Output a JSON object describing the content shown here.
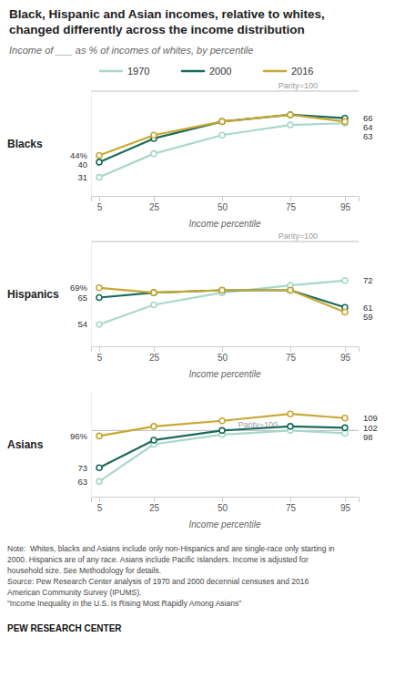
{
  "chart_data": [
    {
      "type": "line",
      "suptitle": "Black, Hispanic and Asian incomes, relative to whites,\nchanged differently across the income distribution",
      "subtitle": "Income of ___ as % of incomes of whites, by percentile",
      "title": "Blacks",
      "x": [
        5,
        25,
        50,
        75,
        95
      ],
      "xlim": [
        2,
        100
      ],
      "xticks": [
        5,
        25,
        50,
        75,
        95
      ],
      "x_label": "Income percentile",
      "ylim": [
        20,
        82
      ],
      "tick_labels": "x",
      "grid": false,
      "legend": "top",
      "data_labels": true,
      "marker": "circle",
      "annotations": [
        {
          "text": "Parity=100"
        }
      ],
      "series": [
        {
          "name": "1970",
          "color": "#a8d8c8",
          "values": [
            31,
            45,
            56,
            62,
            63
          ],
          "value_labels": [
            "31",
            null,
            null,
            null,
            "63"
          ]
        },
        {
          "name": "2000",
          "color": "#1a6b5a",
          "values": [
            40,
            54,
            64,
            68,
            66
          ],
          "value_labels": [
            "40",
            null,
            null,
            null,
            "66"
          ]
        },
        {
          "name": "2016",
          "color": "#c8a832",
          "values": [
            44,
            56,
            64,
            68,
            64
          ],
          "value_labels": [
            "44%",
            null,
            null,
            null,
            "64"
          ]
        }
      ]
    },
    {
      "type": "line",
      "title": "Hispanics",
      "x": [
        5,
        25,
        50,
        75,
        95
      ],
      "xlim": [
        2,
        100
      ],
      "xticks": [
        5,
        25,
        50,
        75,
        95
      ],
      "x_label": "Income percentile",
      "ylim": [
        45,
        88
      ],
      "tick_labels": "x",
      "grid": false,
      "data_labels": true,
      "marker": "circle",
      "annotations": [
        {
          "text": "Parity=100"
        }
      ],
      "series": [
        {
          "name": "1970",
          "color": "#a8d8c8",
          "values": [
            54,
            62,
            67,
            70,
            72
          ],
          "value_labels": [
            "54",
            null,
            null,
            null,
            "72"
          ]
        },
        {
          "name": "2000",
          "color": "#1a6b5a",
          "values": [
            65,
            67,
            68,
            68,
            61
          ],
          "value_labels": [
            "65",
            null,
            null,
            null,
            "61"
          ]
        },
        {
          "name": "2016",
          "color": "#c8a832",
          "values": [
            69,
            67,
            68,
            68,
            59
          ],
          "value_labels": [
            "69%",
            null,
            null,
            null,
            "59"
          ]
        }
      ]
    },
    {
      "type": "line",
      "title": "Asians",
      "x": [
        5,
        25,
        50,
        75,
        95
      ],
      "xlim": [
        2,
        100
      ],
      "xticks": [
        5,
        25,
        50,
        75,
        95
      ],
      "x_label": "Income percentile",
      "ylim": [
        52,
        128
      ],
      "tick_labels": "x",
      "grid": false,
      "data_labels": true,
      "marker": "circle",
      "annotations": [
        {
          "text": "Parity=100",
          "y": 100
        }
      ],
      "series": [
        {
          "name": "1970",
          "color": "#a8d8c8",
          "values": [
            63,
            90,
            97,
            100,
            98
          ],
          "value_labels": [
            "63",
            null,
            null,
            null,
            "98"
          ]
        },
        {
          "name": "2000",
          "color": "#1a6b5a",
          "values": [
            73,
            93,
            100,
            103,
            102
          ],
          "value_labels": [
            "73",
            null,
            null,
            null,
            "102"
          ]
        },
        {
          "name": "2016",
          "color": "#c8a832",
          "values": [
            96,
            103,
            107,
            112,
            109
          ],
          "value_labels": [
            "96%",
            null,
            null,
            null,
            "109"
          ]
        }
      ],
      "note": "Note:  Whites, blacks and Asians include only non-Hispanics and are single-race only starting in\n2000. Hispanics are of any race. Asians include Pacific Islanders. Income is adjusted for\nhousehold size. See Methodology for details.\nSource: Pew Research Center analysis of 1970 and 2000 decennial censuses and 2016\nAmerican Community Survey (IPUMS).\n“Income Inequality in the U.S. Is Rising Most Rapidly Among Asians”",
      "source": "PEW RESEARCH CENTER"
    }
  ]
}
